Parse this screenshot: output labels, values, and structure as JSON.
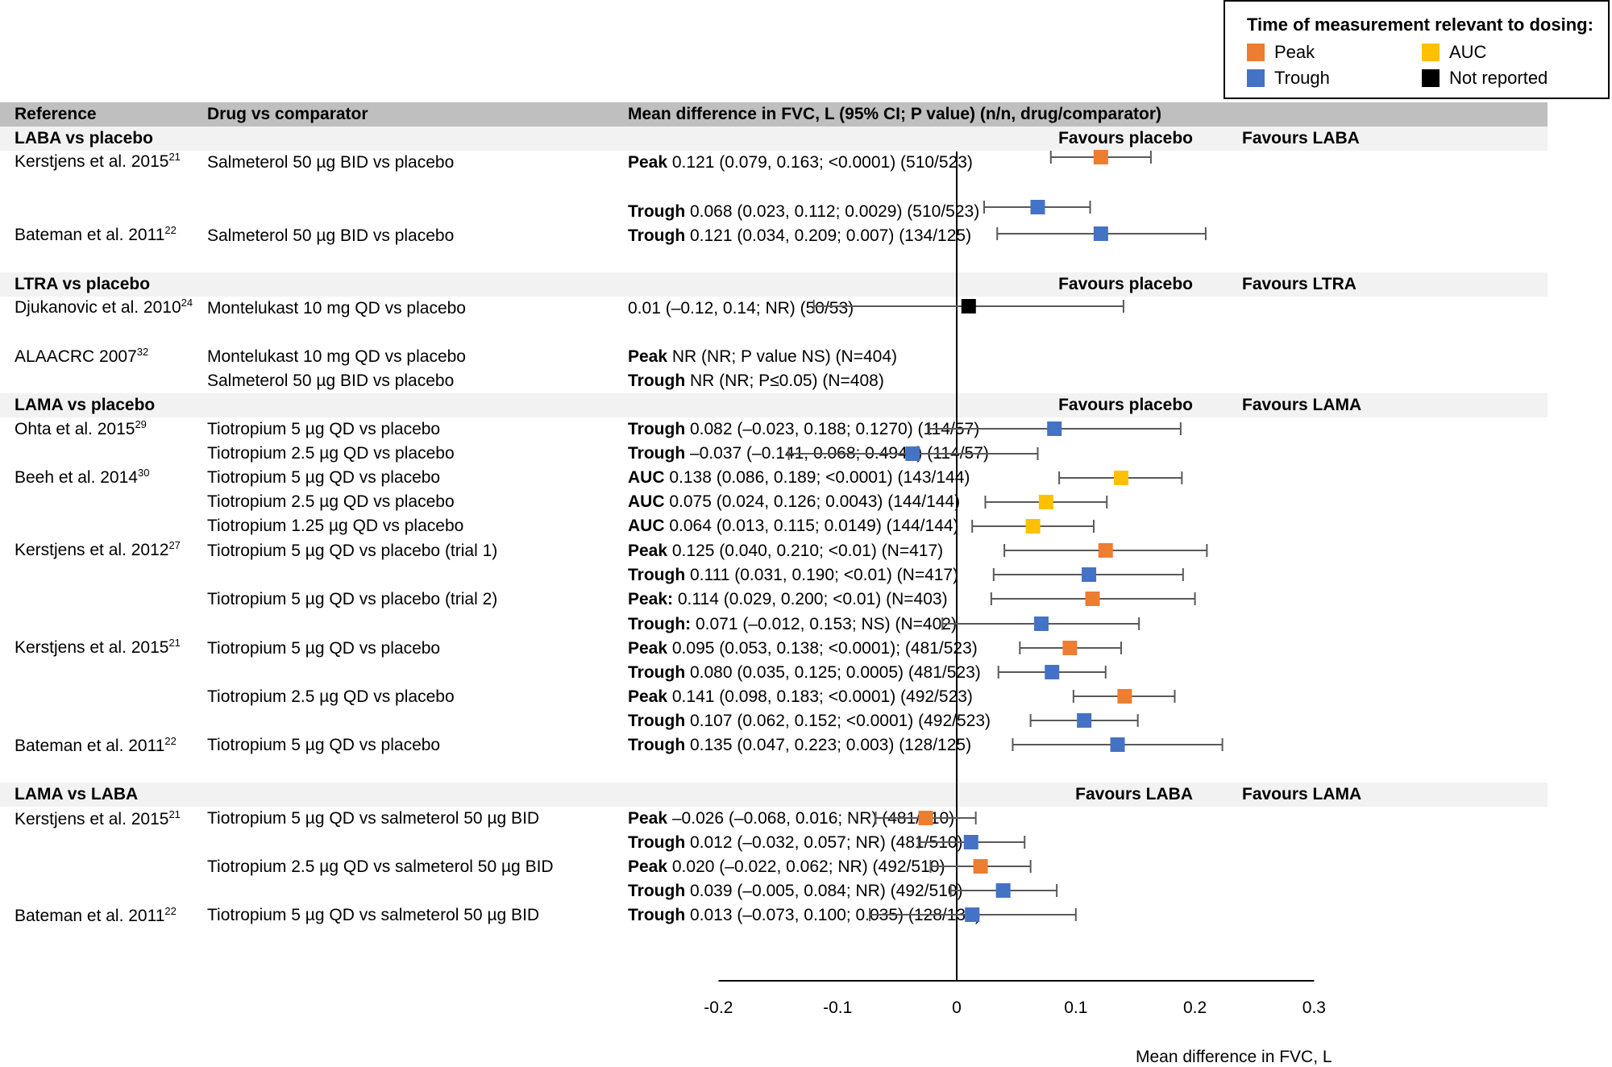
{
  "legend": {
    "title": "Time of measurement relevant to dosing:",
    "items": [
      {
        "label": "Peak",
        "color": "#ED7D31"
      },
      {
        "label": "AUC",
        "color": "#FFC000"
      },
      {
        "label": "Trough",
        "color": "#4472C4"
      },
      {
        "label": "Not reported",
        "color": "#000000"
      }
    ]
  },
  "header": {
    "reference": "Reference",
    "drug": "Drug vs comparator",
    "mean_diff": "Mean difference in FVC, L (95% CI; P value) (n/n, drug/comparator)"
  },
  "groups": [
    {
      "title": "LABA vs placebo",
      "left": "Favours placebo",
      "right": "Favours LABA"
    },
    {
      "title": "LTRA vs placebo",
      "left": "Favours placebo",
      "right": "Favours LTRA"
    },
    {
      "title": "LAMA vs placebo",
      "left": "Favours placebo",
      "right": "Favours LAMA"
    },
    {
      "title": "LAMA vs LABA",
      "left": "Favours LABA",
      "right": "Favours LAMA"
    }
  ],
  "references": [
    {
      "name": "Kerstjens et al. 2015",
      "sup": "21"
    },
    {
      "name": "Bateman et al. 2011",
      "sup": "22"
    },
    {
      "name": "Djukanovic et al. 2010",
      "sup": "24"
    },
    {
      "name": "ALAACRC 2007",
      "sup": "32"
    },
    {
      "name": "Ohta et al. 2015",
      "sup": "29"
    },
    {
      "name": "Beeh et al. 2014",
      "sup": "30"
    },
    {
      "name": "Kerstjens et al. 2012",
      "sup": "27"
    },
    {
      "name": "Kerstjens et al. 2015",
      "sup": "21"
    },
    {
      "name": "Bateman et al. 2011",
      "sup": "22"
    },
    {
      "name": "Kerstjens et al. 2015",
      "sup": "21"
    },
    {
      "name": "Bateman et al. 2011",
      "sup": "22"
    }
  ],
  "drugs": [
    "Salmeterol 50 µg BID vs placebo",
    "Salmeterol 50 µg BID vs placebo",
    "Montelukast 10 mg QD vs placebo",
    "Montelukast 10 mg QD vs placebo",
    "Salmeterol 50 µg BID vs placebo",
    "Tiotropium 5 µg QD vs placebo",
    "Tiotropium 2.5 µg QD vs placebo",
    "Tiotropium 5 µg QD vs placebo",
    "Tiotropium 2.5 µg QD vs placebo",
    "Tiotropium 1.25 µg QD vs placebo",
    "Tiotropium 5 µg QD vs placebo (trial 1)",
    "Tiotropium 5 µg QD vs placebo (trial 2)",
    "Tiotropium 5 µg QD vs placebo",
    "Tiotropium 2.5 µg QD vs placebo",
    "Tiotropium 5 µg QD vs placebo",
    "Tiotropium 5 µg QD vs salmeterol 50 µg BID",
    "Tiotropium 2.5 µg QD vs salmeterol 50 µg BID",
    "Tiotropium 5 µg QD vs salmeterol 50 µg BID"
  ],
  "results": [
    {
      "label": "Peak",
      "text": " 0.121 (0.079, 0.163; <0.0001) (510/523)"
    },
    {
      "label": "Trough",
      "text": " 0.068 (0.023, 0.112; 0.0029) (510/523)"
    },
    {
      "label": "Trough",
      "text": " 0.121 (0.034, 0.209; 0.007) (134/125)"
    },
    {
      "label": "",
      "text": "0.01 (–0.12, 0.14; NR) (50/53)"
    },
    {
      "label": "Peak",
      "text": " NR (NR; P value NS) (N=404)"
    },
    {
      "label": "Trough",
      "text": " NR (NR; P≤0.05) (N=408)"
    },
    {
      "label": "Trough",
      "text": " 0.082 (–0.023, 0.188; 0.1270) (114/57)"
    },
    {
      "label": "Trough",
      "text": " –0.037 (–0.141, 0.068; 0.4944) (114/57)"
    },
    {
      "label": "AUC",
      "text": " 0.138 (0.086, 0.189; <0.0001) (143/144)"
    },
    {
      "label": "AUC",
      "text": " 0.075 (0.024, 0.126; 0.0043) (144/144)"
    },
    {
      "label": "AUC",
      "text": " 0.064 (0.013, 0.115; 0.0149) (144/144)"
    },
    {
      "label": "Peak",
      "text": " 0.125 (0.040, 0.210; <0.01) (N=417)"
    },
    {
      "label": "Trough",
      "text": " 0.111 (0.031, 0.190; <0.01) (N=417)"
    },
    {
      "label": "Peak:",
      "text": " 0.114 (0.029, 0.200; <0.01) (N=403)"
    },
    {
      "label": "Trough:",
      "text": " 0.071 (–0.012, 0.153; NS) (N=402)"
    },
    {
      "label": "Peak",
      "text": " 0.095 (0.053, 0.138; <0.0001); (481/523)"
    },
    {
      "label": "Trough",
      "text": " 0.080 (0.035, 0.125; 0.0005) (481/523)"
    },
    {
      "label": "Peak",
      "text": " 0.141 (0.098, 0.183; <0.0001) (492/523)"
    },
    {
      "label": "Trough",
      "text": " 0.107 (0.062, 0.152; <0.0001) (492/523)"
    },
    {
      "label": "Trough",
      "text": " 0.135 (0.047, 0.223; 0.003) (128/125)"
    },
    {
      "label": "Peak",
      "text": " –0.026 (–0.068, 0.016; NR) (481/510)"
    },
    {
      "label": "Trough",
      "text": " 0.012 (–0.032, 0.057; NR) (481/510)"
    },
    {
      "label": "Peak",
      "text": " 0.020 (–0.022, 0.062; NR) (492/510)"
    },
    {
      "label": "Trough",
      "text": " 0.039 (–0.005, 0.084; NR) (492/510)"
    },
    {
      "label": "Trough",
      "text": " 0.013 (–0.073, 0.100; 0.035) (128/134)"
    }
  ],
  "chart_data": {
    "type": "forest",
    "xlabel": "Mean difference in FVC, L",
    "xlim": [
      -0.2,
      0.3
    ],
    "xticks": [
      "-0.2",
      "-0.1",
      "0",
      "0.1",
      "0.2",
      "0.3"
    ],
    "reference_line": 0,
    "points": [
      {
        "estimate": 0.121,
        "lower": 0.079,
        "upper": 0.163,
        "timing": "Peak"
      },
      {
        "estimate": 0.068,
        "lower": 0.023,
        "upper": 0.112,
        "timing": "Trough"
      },
      {
        "estimate": 0.121,
        "lower": 0.034,
        "upper": 0.209,
        "timing": "Trough"
      },
      {
        "estimate": 0.01,
        "lower": -0.12,
        "upper": 0.14,
        "timing": "Not reported"
      },
      {
        "estimate": 0.082,
        "lower": -0.023,
        "upper": 0.188,
        "timing": "Trough"
      },
      {
        "estimate": -0.037,
        "lower": -0.141,
        "upper": 0.068,
        "timing": "Trough"
      },
      {
        "estimate": 0.138,
        "lower": 0.086,
        "upper": 0.189,
        "timing": "AUC"
      },
      {
        "estimate": 0.075,
        "lower": 0.024,
        "upper": 0.126,
        "timing": "AUC"
      },
      {
        "estimate": 0.064,
        "lower": 0.013,
        "upper": 0.115,
        "timing": "AUC"
      },
      {
        "estimate": 0.125,
        "lower": 0.04,
        "upper": 0.21,
        "timing": "Peak"
      },
      {
        "estimate": 0.111,
        "lower": 0.031,
        "upper": 0.19,
        "timing": "Trough"
      },
      {
        "estimate": 0.114,
        "lower": 0.029,
        "upper": 0.2,
        "timing": "Peak"
      },
      {
        "estimate": 0.071,
        "lower": -0.012,
        "upper": 0.153,
        "timing": "Trough"
      },
      {
        "estimate": 0.095,
        "lower": 0.053,
        "upper": 0.138,
        "timing": "Peak"
      },
      {
        "estimate": 0.08,
        "lower": 0.035,
        "upper": 0.125,
        "timing": "Trough"
      },
      {
        "estimate": 0.141,
        "lower": 0.098,
        "upper": 0.183,
        "timing": "Peak"
      },
      {
        "estimate": 0.107,
        "lower": 0.062,
        "upper": 0.152,
        "timing": "Trough"
      },
      {
        "estimate": 0.135,
        "lower": 0.047,
        "upper": 0.223,
        "timing": "Trough"
      },
      {
        "estimate": -0.026,
        "lower": -0.068,
        "upper": 0.016,
        "timing": "Peak"
      },
      {
        "estimate": 0.012,
        "lower": -0.032,
        "upper": 0.057,
        "timing": "Trough"
      },
      {
        "estimate": 0.02,
        "lower": -0.022,
        "upper": 0.062,
        "timing": "Peak"
      },
      {
        "estimate": 0.039,
        "lower": -0.005,
        "upper": 0.084,
        "timing": "Trough"
      },
      {
        "estimate": 0.013,
        "lower": -0.073,
        "upper": 0.1,
        "timing": "Trough"
      }
    ]
  }
}
